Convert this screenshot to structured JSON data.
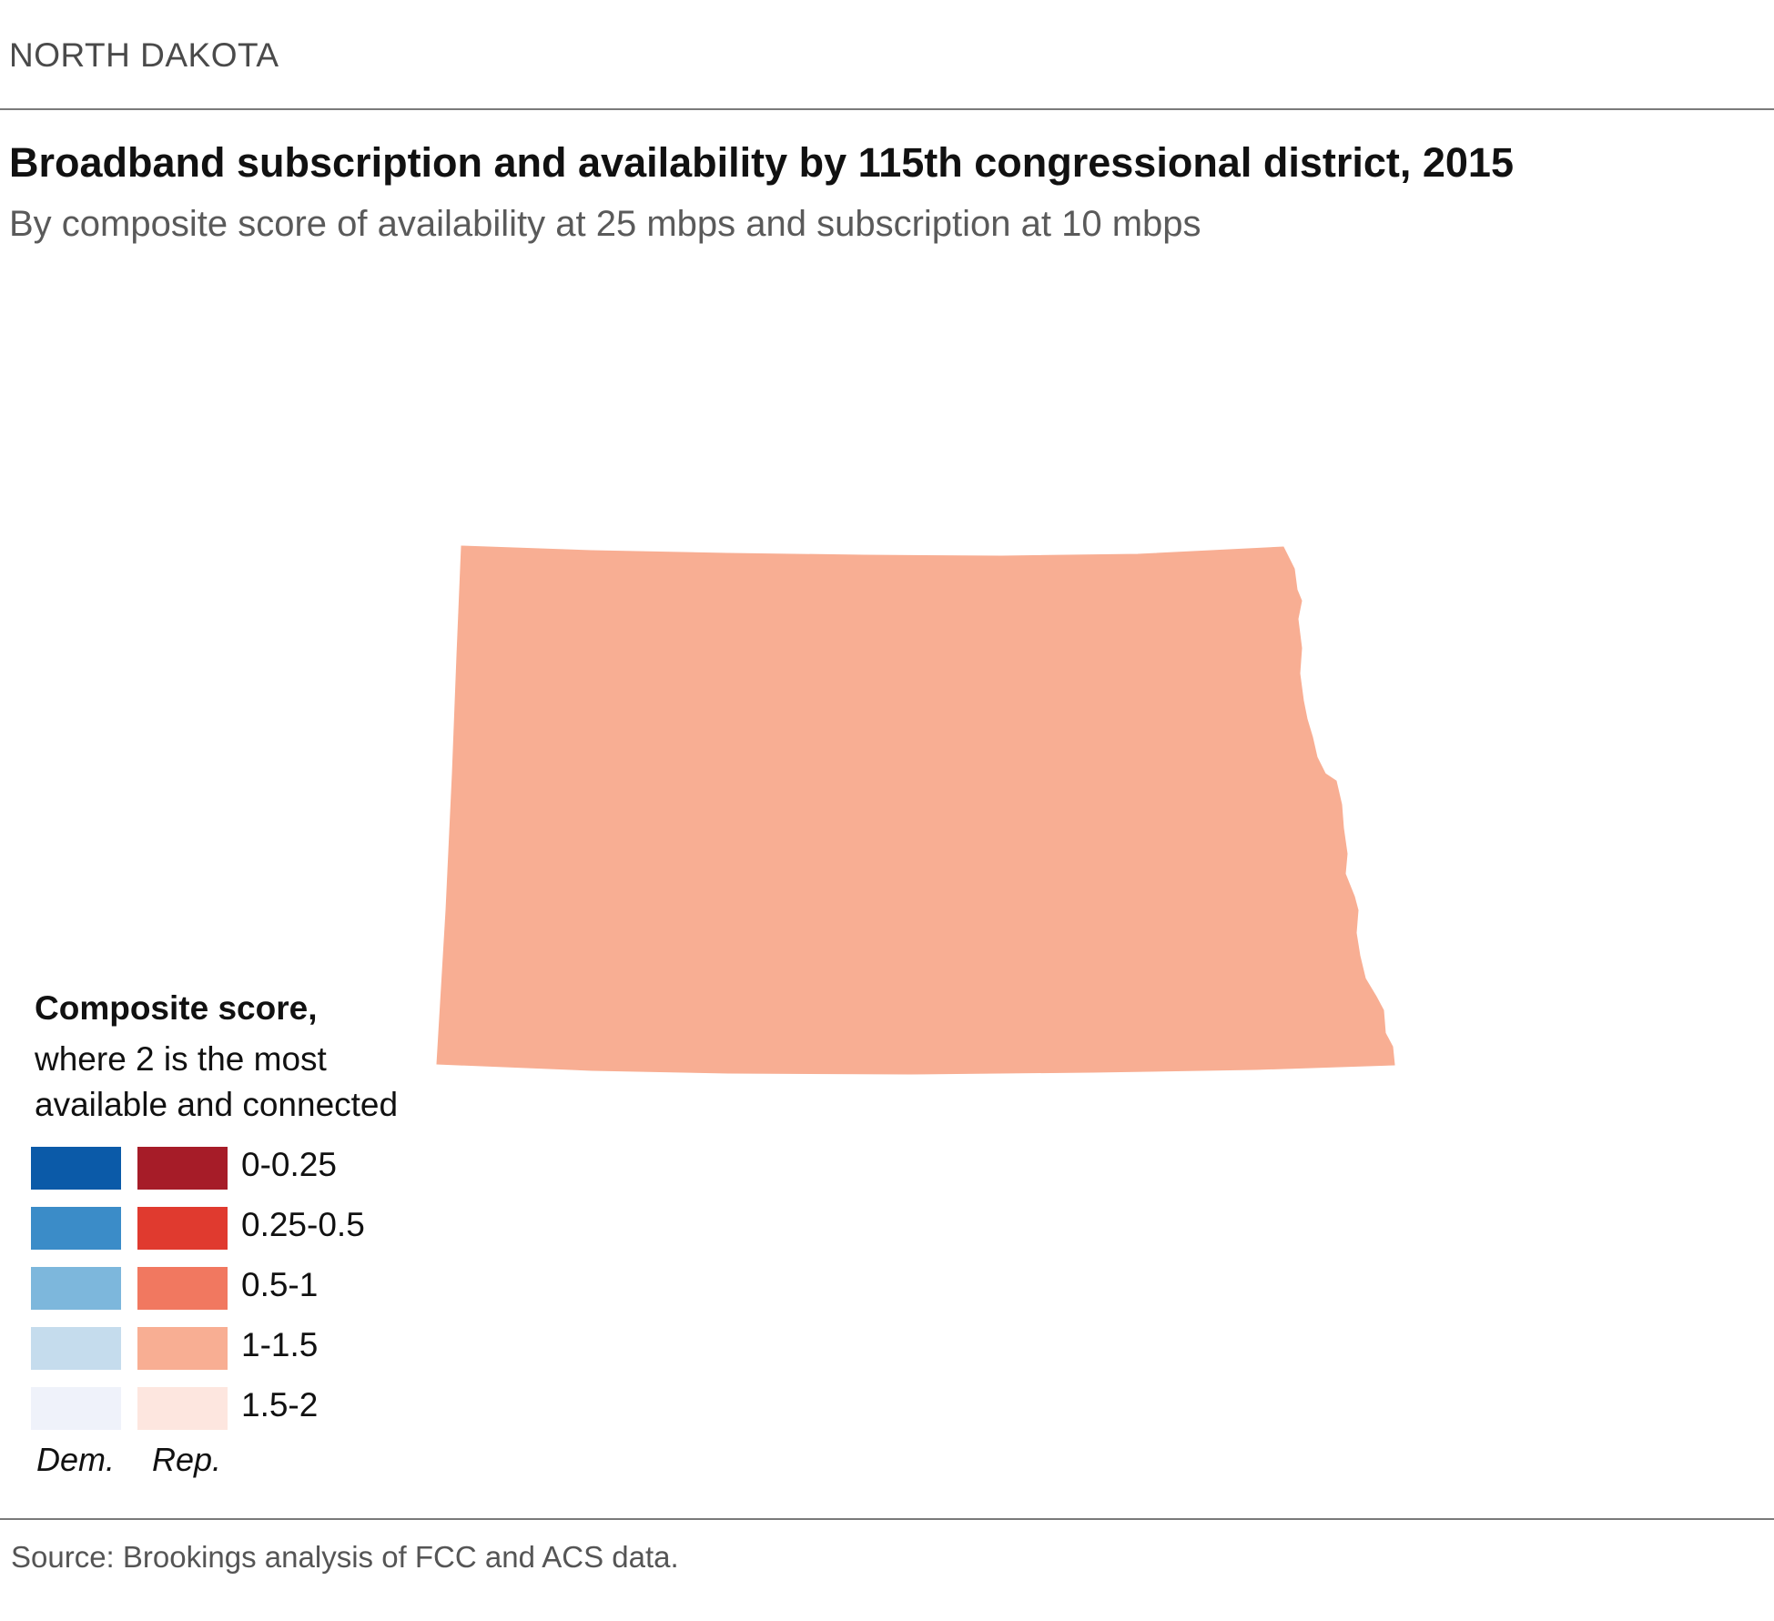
{
  "header": {
    "eyebrow": "NORTH DAKOTA",
    "title": "Broadband subscription and availability by 115th congressional district, 2015",
    "subtitle": "By composite score of availability at 25 mbps and subscription at 10 mbps"
  },
  "map": {
    "region": "North Dakota",
    "fill_color": "#f8ae93",
    "category": "1-1.5",
    "party": "Rep."
  },
  "legend": {
    "heading": "Composite score,",
    "description": "where 2 is the most available and connected",
    "ranges": [
      {
        "label": "0-0.25",
        "dem_color": "#0b5aa8",
        "rep_color": "#a61c28"
      },
      {
        "label": "0.25-0.5",
        "dem_color": "#3b8cc8",
        "rep_color": "#e03a2f"
      },
      {
        "label": "0.5-1",
        "dem_color": "#7db7dc",
        "rep_color": "#f17860"
      },
      {
        "label": "1-1.5",
        "dem_color": "#c5dced",
        "rep_color": "#f8ae93"
      },
      {
        "label": "1.5-2",
        "dem_color": "#eff2fa",
        "rep_color": "#fde6df"
      }
    ],
    "dem_label": "Dem.",
    "rep_label": "Rep."
  },
  "footer": {
    "source": "Source: Brookings analysis of FCC and ACS data."
  }
}
